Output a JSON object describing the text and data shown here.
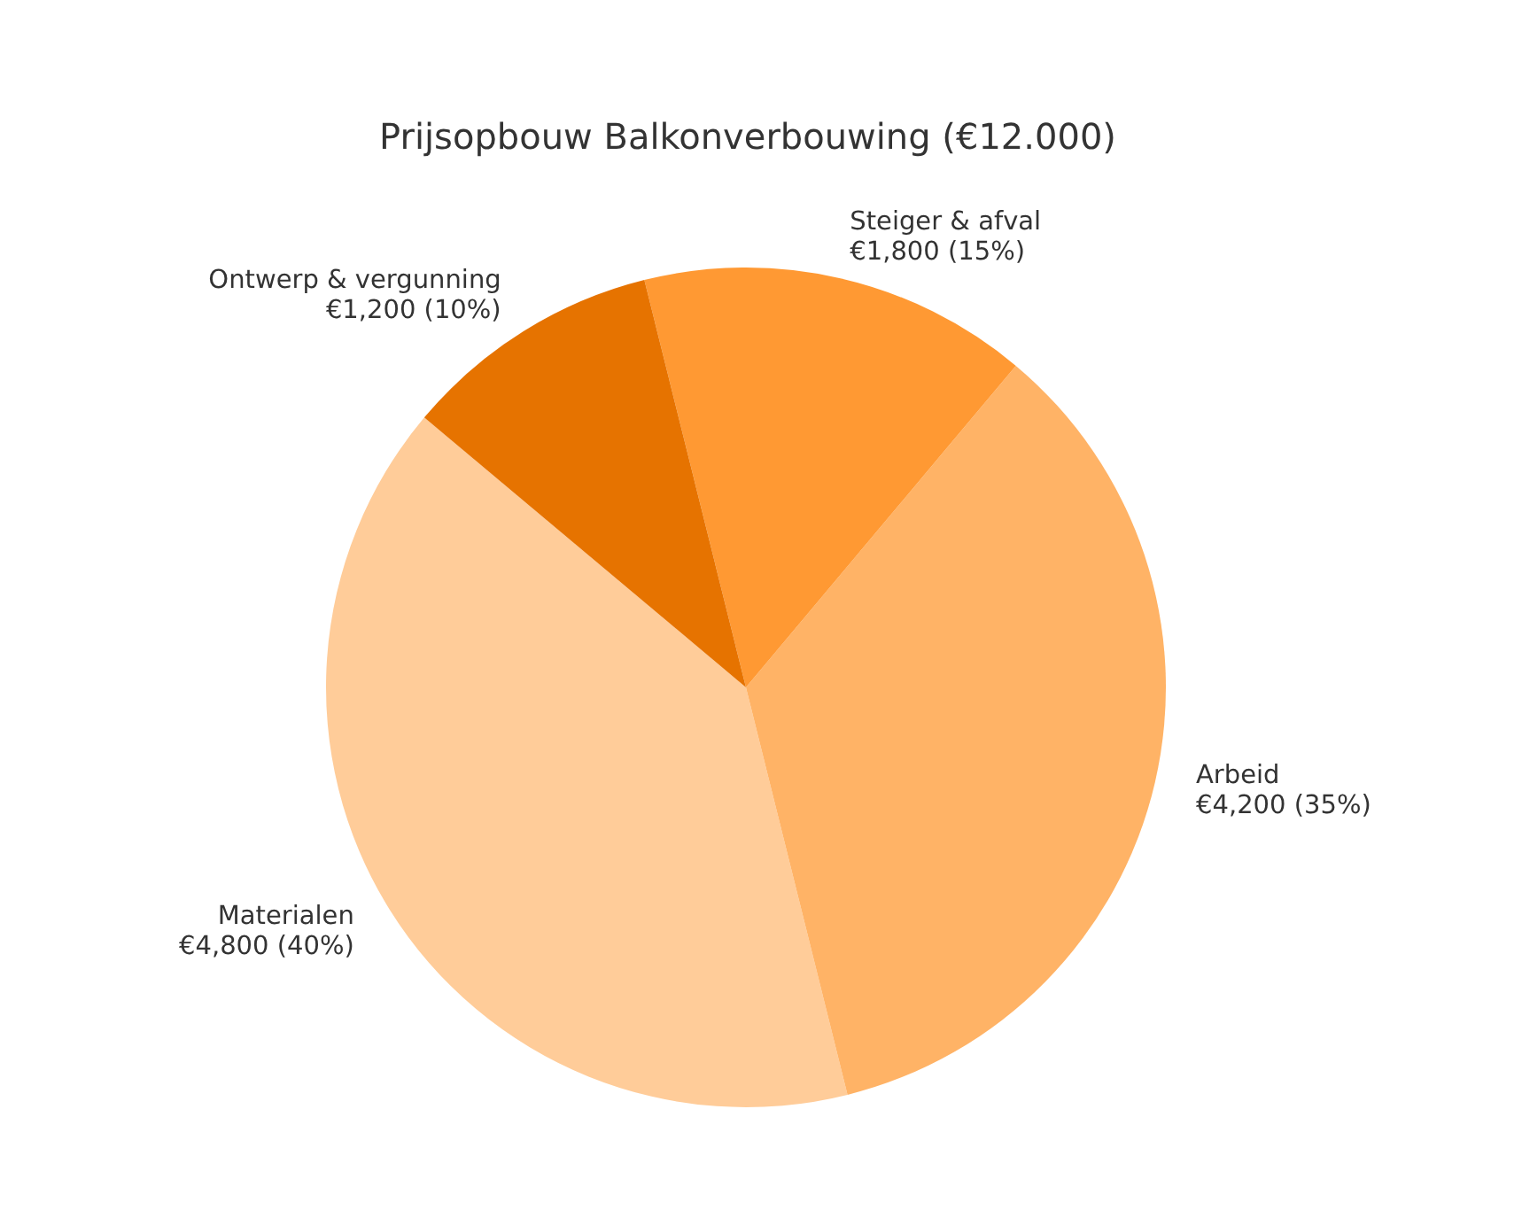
{
  "chart_data": {
    "type": "pie",
    "title": "Prijsopbouw Balkonverbouwing (€12.000)",
    "categories": [
      "Materialen",
      "Arbeid",
      "Steiger & afval",
      "Ontwerp & vergunning"
    ],
    "values": [
      4800,
      4200,
      1800,
      1200
    ],
    "value_labels": [
      "€4,800 (40%)",
      "€4,200 (35%)",
      "€1,800 (15%)",
      "€1,200 (10%)"
    ],
    "colors": [
      "#ffcc99",
      "#ffb366",
      "#ff9933",
      "#e67300"
    ]
  }
}
